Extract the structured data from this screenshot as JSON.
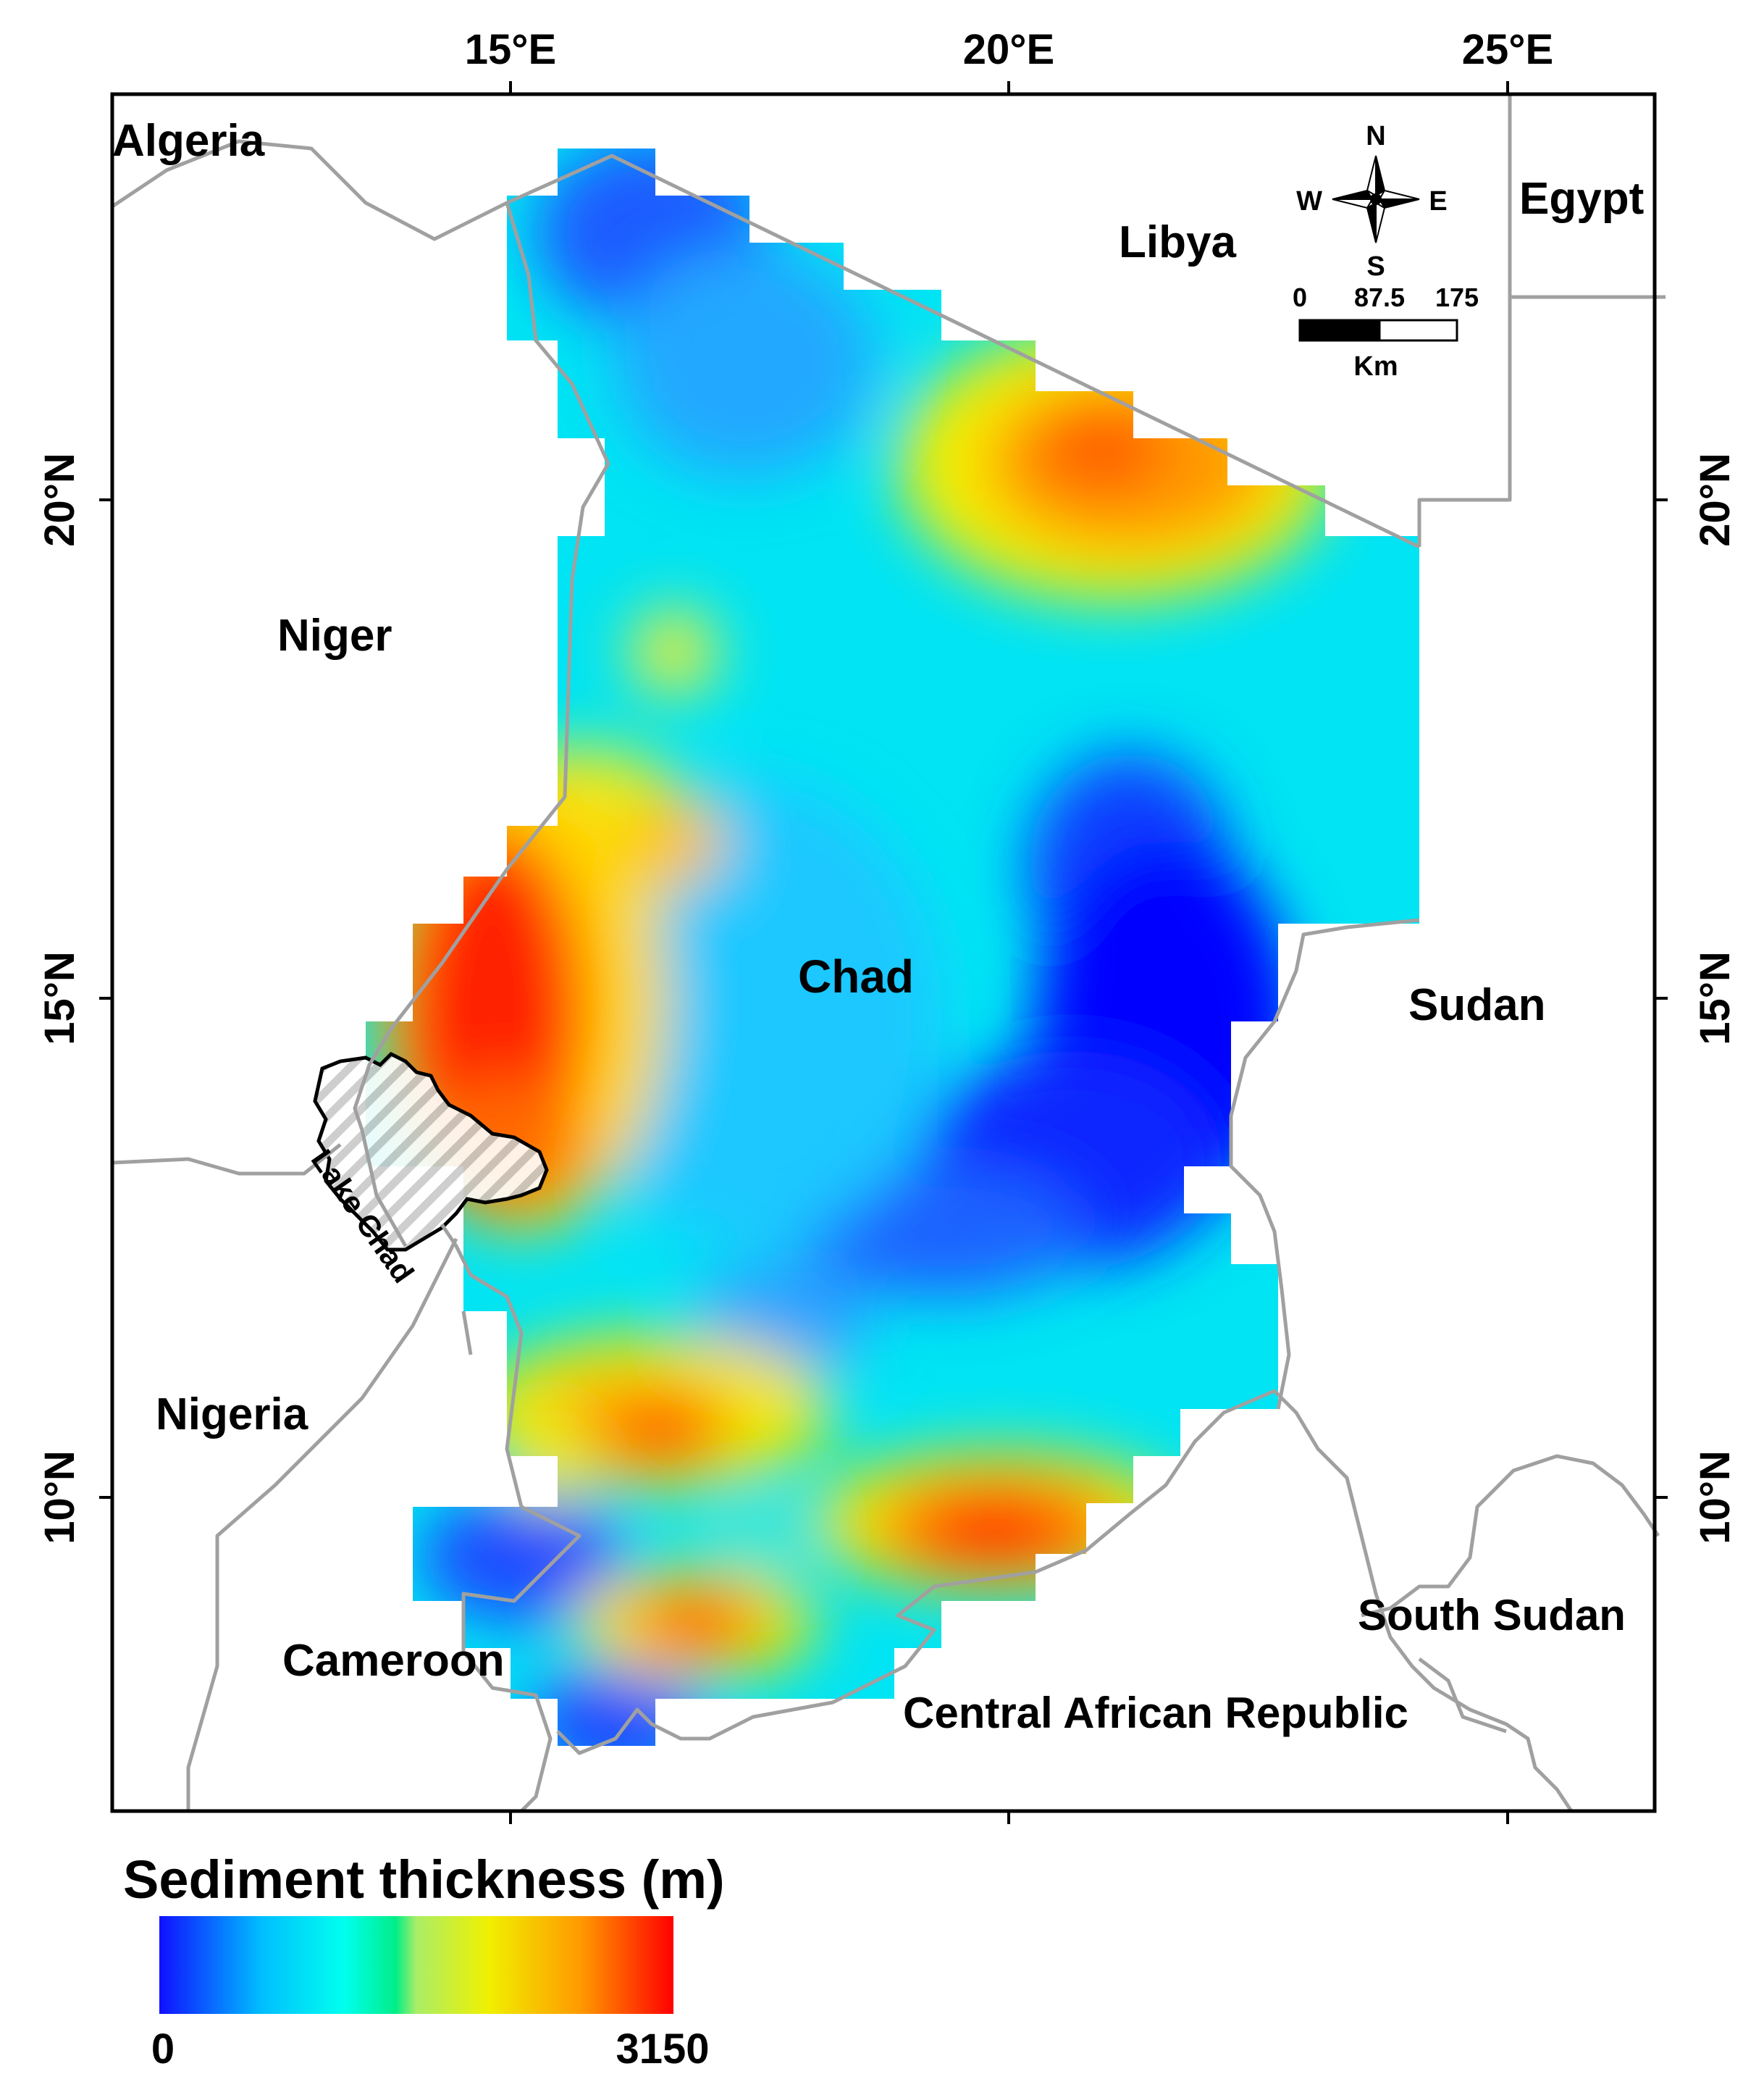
{
  "axes": {
    "top_ticks": [
      "15°E",
      "20°E",
      "25°E"
    ],
    "left_ticks": [
      "20°N",
      "15°N",
      "10°N"
    ],
    "right_ticks": [
      "20°N",
      "15°N",
      "10°N"
    ]
  },
  "countries": {
    "algeria": "Algeria",
    "libya": "Libya",
    "egypt": "Egypt",
    "niger": "Niger",
    "chad": "Chad",
    "sudan": "Sudan",
    "nigeria": "Nigeria",
    "cameroon": "Cameroon",
    "south_sudan": "South Sudan",
    "car": "Central African Republic"
  },
  "features": {
    "lake": "Lake Chad"
  },
  "compass": {
    "n": "N",
    "s": "S",
    "e": "E",
    "w": "W"
  },
  "scalebar": {
    "t0": "0",
    "t1": "87.5",
    "t2": "175",
    "unit": "Km"
  },
  "legend": {
    "title": "Sediment thickness (m)",
    "min": "0",
    "max": "3150",
    "colors": [
      "#0000ff",
      "#00eeff",
      "#00ee88",
      "#eeee00",
      "#ff9900",
      "#ff0000"
    ]
  },
  "colors": {
    "border": "#999999",
    "frame": "#000000",
    "low": "#0000ff",
    "high": "#ff0000"
  }
}
